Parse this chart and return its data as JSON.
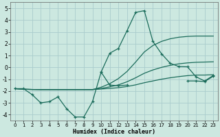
{
  "xlabel": "Humidex (Indice chaleur)",
  "bg_color": "#cce8e0",
  "grid_color": "#aacccc",
  "line_color": "#1a6b5a",
  "xlim": [
    -0.5,
    23.5
  ],
  "ylim": [
    -4.5,
    5.5
  ],
  "yticks": [
    -4,
    -3,
    -2,
    -1,
    0,
    1,
    2,
    3,
    4,
    5
  ],
  "xticks": [
    0,
    1,
    2,
    3,
    4,
    5,
    6,
    7,
    8,
    9,
    10,
    11,
    12,
    13,
    14,
    15,
    16,
    17,
    18,
    19,
    20,
    21,
    22,
    23
  ],
  "series": [
    {
      "x": [
        0,
        1,
        2,
        3,
        4,
        5,
        6,
        7,
        8,
        9,
        10,
        11,
        12,
        13,
        14,
        15,
        16,
        17,
        18,
        19,
        20,
        21,
        22,
        23
      ],
      "y": [
        -1.8,
        -1.8,
        -2.3,
        -3.0,
        -2.9,
        -2.5,
        -3.5,
        -4.2,
        -4.2,
        -2.9,
        -0.4,
        -1.5,
        -1.55,
        -1.5,
        null,
        null,
        null,
        null,
        null,
        null,
        -1.15,
        -1.15,
        -1.2,
        -0.75
      ],
      "marker": true
    },
    {
      "x": [
        0,
        1,
        2,
        3,
        4,
        5,
        6,
        7,
        8,
        9,
        10,
        11,
        12,
        13,
        14,
        15,
        16,
        17,
        18,
        19,
        20,
        21,
        22,
        23
      ],
      "y": [
        -1.8,
        -1.85,
        -1.87,
        -1.88,
        -1.88,
        -1.88,
        -1.88,
        -1.88,
        -1.88,
        -1.88,
        -1.83,
        -1.78,
        -1.72,
        -1.62,
        -1.48,
        -1.3,
        -1.15,
        -1.0,
        -0.88,
        -0.78,
        -0.7,
        -0.65,
        -0.65,
        -0.62
      ],
      "marker": false
    },
    {
      "x": [
        0,
        1,
        2,
        3,
        4,
        5,
        6,
        7,
        8,
        9,
        10,
        11,
        12,
        13,
        14,
        15,
        16,
        17,
        18,
        19,
        20,
        21,
        22,
        23
      ],
      "y": [
        -1.8,
        -1.85,
        -1.87,
        -1.88,
        -1.88,
        -1.88,
        -1.88,
        -1.88,
        -1.88,
        -1.88,
        -1.78,
        -1.65,
        -1.48,
        -1.22,
        -0.88,
        -0.5,
        -0.22,
        0.0,
        0.17,
        0.3,
        0.38,
        0.43,
        0.45,
        0.47
      ],
      "marker": false
    },
    {
      "x": [
        0,
        1,
        2,
        3,
        4,
        5,
        6,
        7,
        8,
        9,
        10,
        11,
        12,
        13,
        14,
        15,
        16,
        17,
        18,
        19,
        20,
        21,
        22,
        23
      ],
      "y": [
        -1.8,
        -1.85,
        -1.87,
        -1.88,
        -1.88,
        -1.88,
        -1.88,
        -1.88,
        -1.88,
        -1.88,
        -1.68,
        -1.38,
        -0.95,
        -0.35,
        0.45,
        1.3,
        1.85,
        2.2,
        2.42,
        2.55,
        2.62,
        2.65,
        2.65,
        2.65
      ],
      "marker": false
    },
    {
      "x": [
        10,
        11,
        12,
        13,
        14,
        15,
        16,
        17,
        18,
        19,
        20,
        21,
        22,
        23
      ],
      "y": [
        -0.4,
        1.2,
        1.6,
        3.1,
        4.65,
        4.8,
        2.2,
        1.15,
        0.35,
        0.07,
        0.05,
        -0.8,
        -1.15,
        -0.68
      ],
      "marker": true
    }
  ]
}
